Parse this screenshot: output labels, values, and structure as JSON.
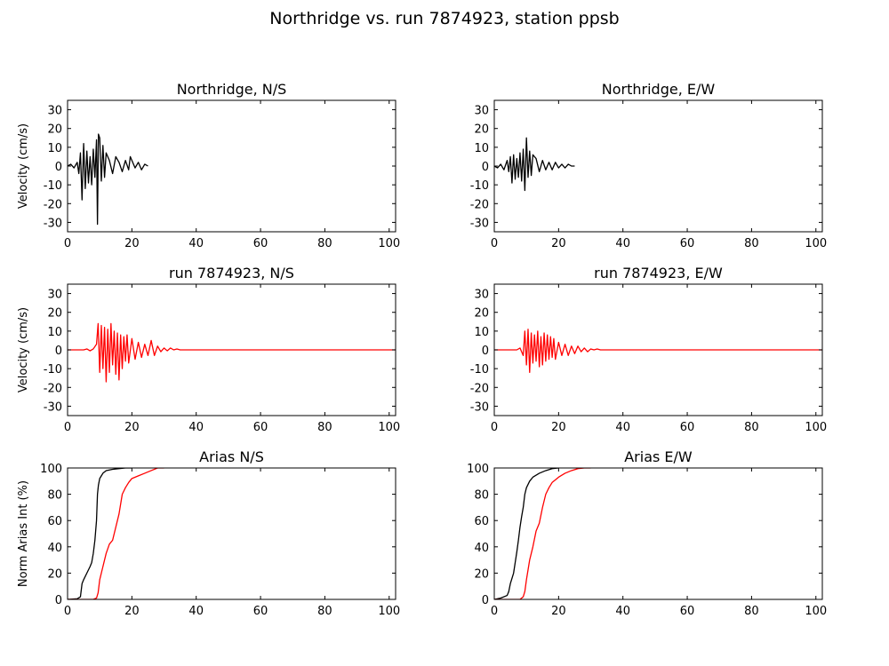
{
  "figure": {
    "suptitle": "Northridge vs. run 7874923, station ppsb"
  },
  "chart_data": [
    {
      "type": "line",
      "title": "Northridge, N/S",
      "xlabel": "",
      "ylabel": "Velocity (cm/s)",
      "xlim": [
        0,
        102
      ],
      "ylim": [
        -35,
        35
      ],
      "xticks": [
        0,
        20,
        40,
        60,
        80,
        100
      ],
      "yticks": [
        -30,
        -20,
        -10,
        0,
        10,
        20,
        30
      ],
      "series": [
        {
          "color": "#000000",
          "x": [
            0,
            1,
            2,
            3,
            3.5,
            4,
            4.5,
            5,
            5.5,
            6,
            6.5,
            7,
            7.5,
            8,
            8.5,
            9,
            9.3,
            9.6,
            10,
            10.5,
            11,
            11.5,
            12,
            13,
            14,
            15,
            16,
            17,
            18,
            19,
            19.5,
            20,
            21,
            22,
            23,
            24,
            25
          ],
          "y": [
            0,
            1,
            -1,
            2,
            -4,
            7,
            -18,
            12,
            -12,
            8,
            -9,
            5,
            -10,
            9,
            -6,
            14,
            -31,
            17,
            15,
            -8,
            11,
            -6,
            7,
            3,
            -4,
            5,
            2,
            -3,
            3,
            -2,
            5,
            3,
            -1,
            2,
            -2,
            1,
            0
          ]
        }
      ]
    },
    {
      "type": "line",
      "title": "Northridge, E/W",
      "xlabel": "",
      "ylabel": "",
      "xlim": [
        0,
        102
      ],
      "ylim": [
        -35,
        35
      ],
      "xticks": [
        0,
        20,
        40,
        60,
        80,
        100
      ],
      "yticks": [
        -30,
        -20,
        -10,
        0,
        10,
        20,
        30
      ],
      "series": [
        {
          "color": "#000000",
          "x": [
            0,
            1,
            2,
            3,
            4,
            4.5,
            5,
            5.5,
            6,
            6.5,
            7,
            7.5,
            8,
            8.5,
            9,
            9.5,
            10,
            10.5,
            11,
            11.5,
            12,
            13,
            14,
            15,
            16,
            17,
            18,
            19,
            20,
            21,
            22,
            23,
            24,
            25
          ],
          "y": [
            0,
            -1,
            1,
            -2,
            3,
            -3,
            5,
            -9,
            6,
            -7,
            4,
            -6,
            7,
            -8,
            9,
            -13,
            15,
            -6,
            8,
            -5,
            6,
            4,
            -3,
            3,
            -2,
            2,
            -2,
            2,
            -1,
            1,
            -1,
            1,
            0,
            0
          ]
        }
      ]
    },
    {
      "type": "line",
      "title": "run 7874923, N/S",
      "xlabel": "",
      "ylabel": "Velocity (cm/s)",
      "xlim": [
        0,
        102
      ],
      "ylim": [
        -35,
        35
      ],
      "xticks": [
        0,
        20,
        40,
        60,
        80,
        100
      ],
      "yticks": [
        -30,
        -20,
        -10,
        0,
        10,
        20,
        30
      ],
      "series": [
        {
          "color": "#ff0000",
          "x": [
            0,
            5,
            6,
            7,
            8,
            9,
            9.5,
            10,
            10.5,
            11,
            11.5,
            12,
            12.5,
            13,
            13.5,
            14,
            14.5,
            15,
            15.5,
            16,
            16.5,
            17,
            17.5,
            18,
            18.5,
            19,
            20,
            21,
            22,
            23,
            24,
            25,
            26,
            27,
            28,
            29,
            30,
            31,
            32,
            33,
            34,
            35,
            36,
            102
          ],
          "y": [
            0,
            0,
            0.5,
            -0.5,
            0.5,
            3,
            14,
            -12,
            13,
            -10,
            12,
            -17,
            11,
            -12,
            14,
            -8,
            10,
            -13,
            9,
            -16,
            8,
            -10,
            7,
            -6,
            8,
            -7,
            6,
            -5,
            4,
            -4,
            3,
            -3,
            5,
            -3,
            2,
            -1,
            1,
            -0.5,
            1,
            0,
            0.5,
            0,
            0,
            0
          ]
        }
      ]
    },
    {
      "type": "line",
      "title": "run 7874923, E/W",
      "xlabel": "",
      "ylabel": "",
      "xlim": [
        0,
        102
      ],
      "ylim": [
        -35,
        35
      ],
      "xticks": [
        0,
        20,
        40,
        60,
        80,
        100
      ],
      "yticks": [
        -30,
        -20,
        -10,
        0,
        10,
        20,
        30
      ],
      "series": [
        {
          "color": "#ff0000",
          "x": [
            0,
            7,
            8,
            9,
            9.5,
            10,
            10.5,
            11,
            11.5,
            12,
            12.5,
            13,
            13.5,
            14,
            14.5,
            15,
            15.5,
            16,
            16.5,
            17,
            17.5,
            18,
            18.5,
            19,
            20,
            21,
            22,
            23,
            24,
            25,
            26,
            27,
            28,
            29,
            30,
            31,
            32,
            33,
            102
          ],
          "y": [
            0,
            0,
            1,
            -3,
            10,
            -8,
            11,
            -12,
            9,
            -7,
            8,
            -6,
            10,
            -9,
            7,
            -8,
            9,
            -6,
            8,
            -5,
            7,
            -4,
            6,
            -5,
            4,
            -3,
            3,
            -3,
            2,
            -2,
            2,
            -1,
            1,
            -1,
            0.5,
            0,
            0.5,
            0,
            0
          ]
        }
      ]
    },
    {
      "type": "line",
      "title": "Arias N/S",
      "xlabel": "",
      "ylabel": "Norm Arias Int (%)",
      "xlim": [
        0,
        102
      ],
      "ylim": [
        0,
        100
      ],
      "xticks": [
        0,
        20,
        40,
        60,
        80,
        100
      ],
      "yticks": [
        0,
        20,
        40,
        60,
        80,
        100
      ],
      "series": [
        {
          "color": "#000000",
          "x": [
            0,
            3,
            4,
            4.5,
            5,
            6,
            7,
            7.5,
            8,
            8.5,
            9,
            9.3,
            9.6,
            10,
            10.5,
            11,
            12,
            14,
            16,
            18,
            20
          ],
          "y": [
            0,
            0.5,
            2,
            12,
            15,
            20,
            25,
            28,
            35,
            45,
            60,
            80,
            87,
            92,
            94,
            96,
            98,
            99,
            99.5,
            100,
            100
          ]
        },
        {
          "color": "#ff0000",
          "x": [
            0,
            8,
            9,
            9.5,
            10,
            10.5,
            11,
            12,
            13,
            14,
            15,
            16,
            17,
            18,
            19,
            20,
            22,
            24,
            26,
            28,
            30
          ],
          "y": [
            0,
            0,
            1,
            5,
            15,
            20,
            25,
            35,
            42,
            45,
            55,
            65,
            80,
            85,
            89,
            92,
            94,
            96,
            98,
            100,
            100
          ]
        }
      ]
    },
    {
      "type": "line",
      "title": "Arias E/W",
      "xlabel": "",
      "ylabel": "",
      "xlim": [
        0,
        102
      ],
      "ylim": [
        0,
        100
      ],
      "xticks": [
        0,
        20,
        40,
        60,
        80,
        100
      ],
      "yticks": [
        0,
        20,
        40,
        60,
        80,
        100
      ],
      "series": [
        {
          "color": "#000000",
          "x": [
            0,
            2,
            4,
            4.5,
            5,
            6,
            6.5,
            7,
            7.5,
            8,
            8.5,
            9,
            9.5,
            10,
            11,
            12,
            14,
            16,
            18,
            20
          ],
          "y": [
            0,
            1,
            3,
            6,
            12,
            20,
            28,
            36,
            45,
            55,
            63,
            70,
            80,
            85,
            90,
            93,
            96,
            98,
            99.5,
            100
          ]
        },
        {
          "color": "#ff0000",
          "x": [
            0,
            8,
            9,
            9.5,
            10,
            11,
            12,
            13,
            13.5,
            14,
            15,
            15.5,
            16,
            17,
            18,
            19,
            20,
            22,
            24,
            26,
            28,
            30
          ],
          "y": [
            0,
            0,
            2,
            6,
            15,
            30,
            40,
            52,
            55,
            58,
            70,
            75,
            80,
            85,
            89,
            91,
            93,
            96,
            98,
            99.5,
            100,
            100
          ]
        }
      ]
    }
  ]
}
